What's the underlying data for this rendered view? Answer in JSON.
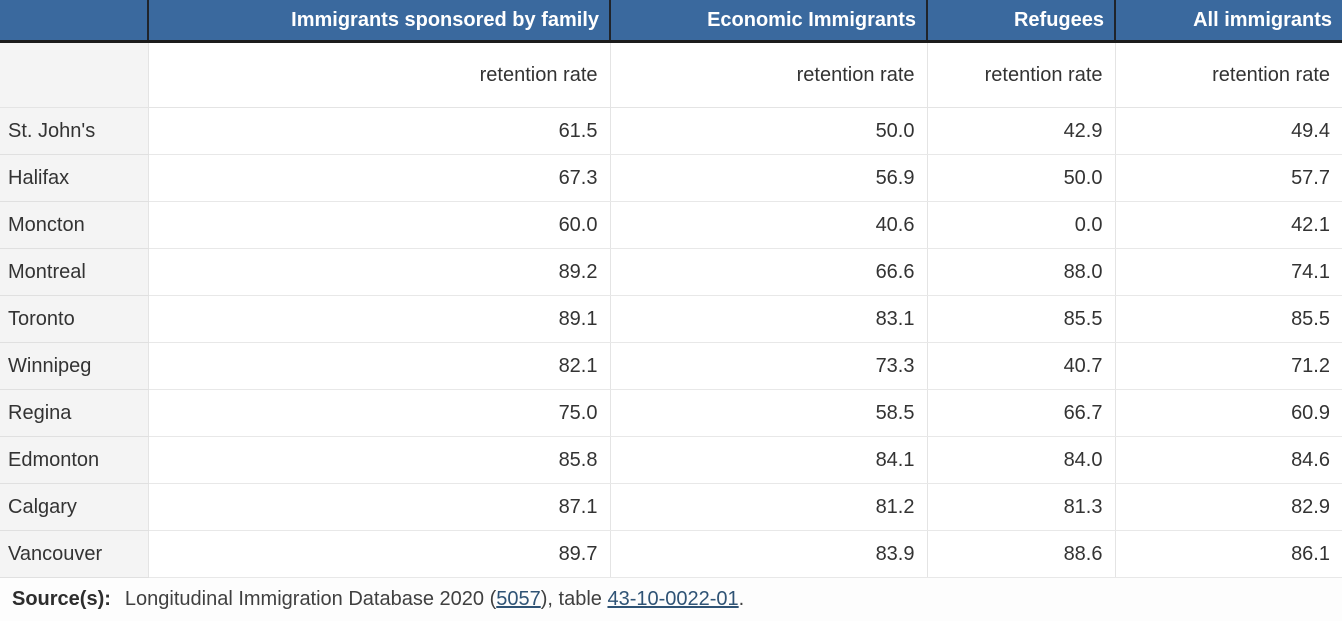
{
  "table": {
    "header": {
      "columns": [
        {
          "label": ""
        },
        {
          "label": "Immigrants sponsored by family"
        },
        {
          "label": "Economic Immigrants"
        },
        {
          "label": "Refugees"
        },
        {
          "label": "All immigrants"
        }
      ],
      "subheader_label": "retention rate"
    },
    "rows": [
      {
        "city": "St. John's",
        "values": [
          "61.5",
          "50.0",
          "42.9",
          "49.4"
        ]
      },
      {
        "city": "Halifax",
        "values": [
          "67.3",
          "56.9",
          "50.0",
          "57.7"
        ]
      },
      {
        "city": "Moncton",
        "values": [
          "60.0",
          "40.6",
          "0.0",
          "42.1"
        ]
      },
      {
        "city": "Montreal",
        "values": [
          "89.2",
          "66.6",
          "88.0",
          "74.1"
        ]
      },
      {
        "city": "Toronto",
        "values": [
          "89.1",
          "83.1",
          "85.5",
          "85.5"
        ]
      },
      {
        "city": "Winnipeg",
        "values": [
          "82.1",
          "73.3",
          "40.7",
          "71.2"
        ]
      },
      {
        "city": "Regina",
        "values": [
          "75.0",
          "58.5",
          "66.7",
          "60.9"
        ]
      },
      {
        "city": "Edmonton",
        "values": [
          "85.8",
          "84.1",
          "84.0",
          "84.6"
        ]
      },
      {
        "city": "Calgary",
        "values": [
          "87.1",
          "81.2",
          "81.3",
          "82.9"
        ]
      },
      {
        "city": "Vancouver",
        "values": [
          "89.7",
          "83.9",
          "88.6",
          "86.1"
        ]
      }
    ]
  },
  "source": {
    "label": "Source(s):",
    "text_before": "Longitudinal Immigration Database 2020 (",
    "link_survey": "5057",
    "text_middle": "), table ",
    "link_table": "43-10-0022-01",
    "text_after": "."
  },
  "colors": {
    "header_bg": "#3a699e",
    "header_text": "#ffffff",
    "header_divider": "#20242a",
    "header_bottom_border": "#1c1c1c",
    "label_column_bg": "#f4f4f4",
    "body_text": "#333333",
    "grid_line": "#e4e4e4",
    "link": "#2f5375"
  },
  "chart_data": {
    "type": "table",
    "title": "Retention rate of immigrants by admission category and city",
    "column_groups": [
      "Immigrants sponsored by family",
      "Economic Immigrants",
      "Refugees",
      "All immigrants"
    ],
    "measure": "retention rate",
    "categories": [
      "St. John's",
      "Halifax",
      "Moncton",
      "Montreal",
      "Toronto",
      "Winnipeg",
      "Regina",
      "Edmonton",
      "Calgary",
      "Vancouver"
    ],
    "series": [
      {
        "name": "Immigrants sponsored by family",
        "values": [
          61.5,
          67.3,
          60.0,
          89.2,
          89.1,
          82.1,
          75.0,
          85.8,
          87.1,
          89.7
        ]
      },
      {
        "name": "Economic Immigrants",
        "values": [
          50.0,
          56.9,
          40.6,
          66.6,
          83.1,
          73.3,
          58.5,
          84.1,
          81.2,
          83.9
        ]
      },
      {
        "name": "Refugees",
        "values": [
          42.9,
          50.0,
          0.0,
          88.0,
          85.5,
          40.7,
          66.7,
          84.0,
          81.3,
          88.6
        ]
      },
      {
        "name": "All immigrants",
        "values": [
          49.4,
          57.7,
          42.1,
          74.1,
          85.5,
          71.2,
          60.9,
          84.6,
          82.9,
          86.1
        ]
      }
    ],
    "source_note": "Source(s): Longitudinal Immigration Database 2020 (5057), table 43-10-0022-01."
  }
}
